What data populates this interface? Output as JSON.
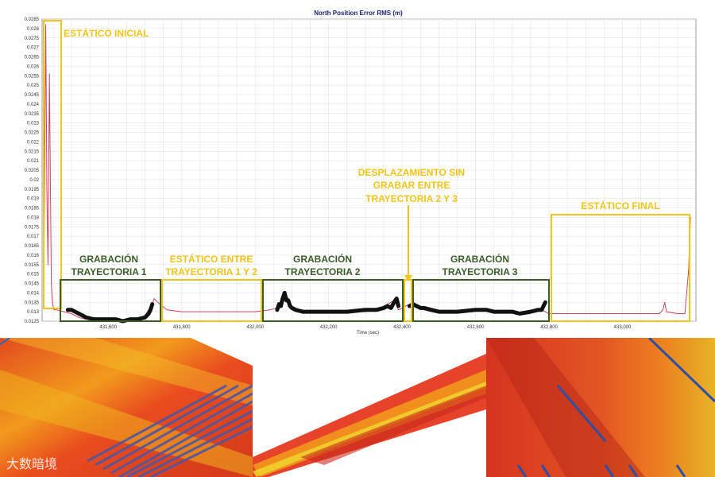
{
  "chart_data": {
    "type": "line",
    "title": "North Position Error RMS (m)",
    "xlabel": "Time (sec)",
    "ylabel": "",
    "xlim": [
      431420,
      433200
    ],
    "ylim": [
      0.0125,
      0.0285
    ],
    "x_ticks": [
      431600,
      431800,
      432000,
      432200,
      432400,
      432600,
      432800,
      433000
    ],
    "x_tick_labels": [
      "431,600",
      "431,800",
      "432,000",
      "432,200",
      "432,400",
      "432,600",
      "432,800",
      "433,000"
    ],
    "y_tick_labels": [
      "0.0125",
      "0.013",
      "0.0135",
      "0.014",
      "0.0145",
      "0.015",
      "0.0155",
      "0.016",
      "0.0165",
      "0.017",
      "0.0175",
      "0.018",
      "0.0185",
      "0.019",
      "0.0195",
      "0.02",
      "0.0205",
      "0.021",
      "0.0215",
      "0.022",
      "0.0225",
      "0.023",
      "0.0235",
      "0.024",
      "0.0245",
      "0.025",
      "0.0255",
      "0.026",
      "0.0265",
      "0.027",
      "0.0275",
      "0.028",
      "0.0285"
    ],
    "grid": true,
    "series": [
      {
        "color": "#d0435e",
        "x": [
          431425,
          431430,
          431433,
          431436,
          431440,
          431445,
          431448,
          431452,
          431460,
          431480,
          431500,
          431520,
          431540,
          431560,
          431580,
          431600,
          431620,
          431640,
          431660,
          431680,
          431700,
          431710,
          431720,
          431725,
          431735,
          431760,
          431800,
          431850,
          431900,
          431950,
          432000,
          432040,
          432060,
          432070,
          432080,
          432090,
          432100,
          432120,
          432150,
          432200,
          432250,
          432300,
          432330,
          432350,
          432360,
          432380,
          432390,
          432410,
          432420,
          432430,
          432440,
          432460,
          432480,
          432500,
          432550,
          432600,
          432650,
          432700,
          432720,
          432780,
          432800,
          432850,
          432900,
          432950,
          433000,
          433050,
          433100,
          433110,
          433115,
          433120,
          433150,
          433170,
          433180,
          433185
        ],
        "y": [
          0.0155,
          0.0282,
          0.0195,
          0.0155,
          0.0256,
          0.0145,
          0.0135,
          0.0131,
          0.0131,
          0.013,
          0.0129,
          0.0127,
          0.0126,
          0.0127,
          0.0126,
          0.0126,
          0.0126,
          0.0125,
          0.0126,
          0.0126,
          0.0128,
          0.0131,
          0.0134,
          0.0137,
          0.0135,
          0.0131,
          0.013,
          0.013,
          0.013,
          0.013,
          0.013,
          0.0131,
          0.0132,
          0.0136,
          0.014,
          0.0137,
          0.0133,
          0.0131,
          0.013,
          0.013,
          0.013,
          0.013,
          0.0131,
          0.0132,
          0.0134,
          0.0136,
          0.0131,
          0.0133,
          0.0134,
          0.0133,
          0.0132,
          0.0131,
          0.013,
          0.013,
          0.013,
          0.0131,
          0.013,
          0.013,
          0.0129,
          0.0131,
          0.0129,
          0.0129,
          0.0129,
          0.0129,
          0.0129,
          0.0129,
          0.0129,
          0.0131,
          0.0135,
          0.013,
          0.0129,
          0.0129,
          0.0152,
          0.018
        ]
      },
      {
        "color": "#111111",
        "x": [
          431490,
          431500,
          431510,
          431520,
          431530,
          431540,
          431560,
          431580,
          431600,
          431620,
          431640,
          431660,
          431680,
          431700,
          431710,
          431715,
          431720
        ],
        "y": [
          0.0131,
          0.0131,
          0.013,
          0.0129,
          0.0128,
          0.0127,
          0.0126,
          0.0126,
          0.0126,
          0.0126,
          0.0125,
          0.0126,
          0.0126,
          0.0127,
          0.0129,
          0.0131,
          0.0134
        ]
      },
      {
        "color": "#111111",
        "x": [
          432060,
          432065,
          432070,
          432075,
          432080,
          432085,
          432090,
          432095,
          432100,
          432110,
          432130,
          432160,
          432200,
          432250,
          432300,
          432330,
          432350,
          432360,
          432370,
          432378,
          432385,
          432390
        ],
        "y": [
          0.0131,
          0.0134,
          0.0133,
          0.0137,
          0.014,
          0.0136,
          0.0136,
          0.0133,
          0.0132,
          0.0131,
          0.013,
          0.013,
          0.013,
          0.013,
          0.0131,
          0.0131,
          0.0132,
          0.0133,
          0.0132,
          0.0135,
          0.0137,
          0.0133
        ]
      },
      {
        "color": "#111111",
        "x": [
          432420,
          432430,
          432440,
          432450,
          432460,
          432480,
          432500,
          432550,
          432600,
          432630,
          432650,
          432680,
          432700,
          432720,
          432750,
          432770,
          432780,
          432790
        ],
        "y": [
          0.0133,
          0.0134,
          0.0133,
          0.0132,
          0.0132,
          0.0131,
          0.013,
          0.013,
          0.0131,
          0.0131,
          0.013,
          0.013,
          0.013,
          0.0129,
          0.013,
          0.0131,
          0.0131,
          0.0135
        ]
      }
    ],
    "annotations": [
      {
        "text": "ESTÁTICO INICIAL",
        "color": "#f0c419"
      },
      {
        "text": "GRABACIÓN TRAYECTORIA 1",
        "color": "#3a5d2a"
      },
      {
        "text": "ESTÁTICO ENTRE TRAYECTORIA 1 Y 2",
        "color": "#f0c419"
      },
      {
        "text": "GRABACIÓN TRAYECTORIA 2",
        "color": "#3a5d2a"
      },
      {
        "text": "DESPLAZAMIENTO SIN GRABAR ENTRE TRAYECTORIA 2 Y 3",
        "color": "#f0c419"
      },
      {
        "text": "GRABACIÓN TRAYECTORIA 3",
        "color": "#3a5d2a"
      },
      {
        "text": "ESTÁTICO FINAL",
        "color": "#f0c419"
      }
    ]
  },
  "labels": {
    "annot_initial": "ESTÁTICO INICIAL",
    "annot_traj1_l1": "GRABACIÓN",
    "annot_traj1_l2": "TRAYECTORIA 1",
    "annot_static12_l1": "ESTÁTICO ENTRE",
    "annot_static12_l2": "TRAYECTORIA 1 Y 2",
    "annot_traj2_l1": "GRABACIÓN",
    "annot_traj2_l2": "TRAYECTORIA 2",
    "annot_move_l1": "DESPLAZAMIENTO SIN",
    "annot_move_l2": "GRABAR ENTRE",
    "annot_move_l3": "TRAYECTORIA 2 Y 3",
    "annot_traj3_l1": "GRABACIÓN",
    "annot_traj3_l2": "TRAYECTORIA 3",
    "annot_final": "ESTÁTICO FINAL"
  },
  "colors": {
    "annotation_yellow": "#f0c419",
    "annotation_green": "#3a5d2a",
    "title_navy": "#1a237e"
  },
  "photos": [
    {
      "name": "point-cloud-crosswalk",
      "palette": [
        "#e8401c",
        "#f29a1d",
        "#e7c51a",
        "#5a6fb3"
      ]
    },
    {
      "name": "point-cloud-road",
      "palette": [
        "#e6432a",
        "#f4a31b",
        "#efd02c",
        "#ffffff"
      ]
    },
    {
      "name": "point-cloud-closeup",
      "palette": [
        "#d5341f",
        "#ec7d1f",
        "#e6b326",
        "#2e4fa3"
      ]
    }
  ],
  "watermark": "大数暗境"
}
